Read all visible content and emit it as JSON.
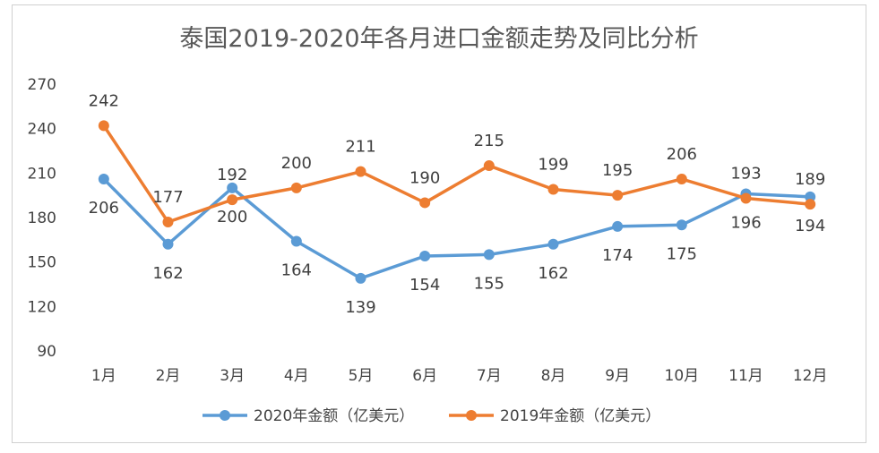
{
  "chart_data": {
    "type": "line",
    "title": "泰国2019-2020年各月进口金额走势及同比分析",
    "xlabel": "",
    "ylabel": "",
    "categories": [
      "1月",
      "2月",
      "3月",
      "4月",
      "5月",
      "6月",
      "7月",
      "8月",
      "9月",
      "10月",
      "11月",
      "12月"
    ],
    "ylim": [
      90,
      270
    ],
    "yticks": [
      90,
      120,
      150,
      180,
      210,
      240,
      270
    ],
    "grid": false,
    "legend_position": "bottom",
    "series": [
      {
        "name": "2020年金额（亿美元）",
        "color": "#5B9BD5",
        "values": [
          206,
          162,
          200,
          164,
          139,
          154,
          155,
          162,
          174,
          175,
          196,
          194
        ],
        "label_position": "below"
      },
      {
        "name": "2019年金额（亿美元）",
        "color": "#ED7D31",
        "values": [
          242,
          177,
          192,
          200,
          211,
          190,
          215,
          199,
          195,
          206,
          193,
          189
        ],
        "label_position": "above"
      }
    ]
  }
}
